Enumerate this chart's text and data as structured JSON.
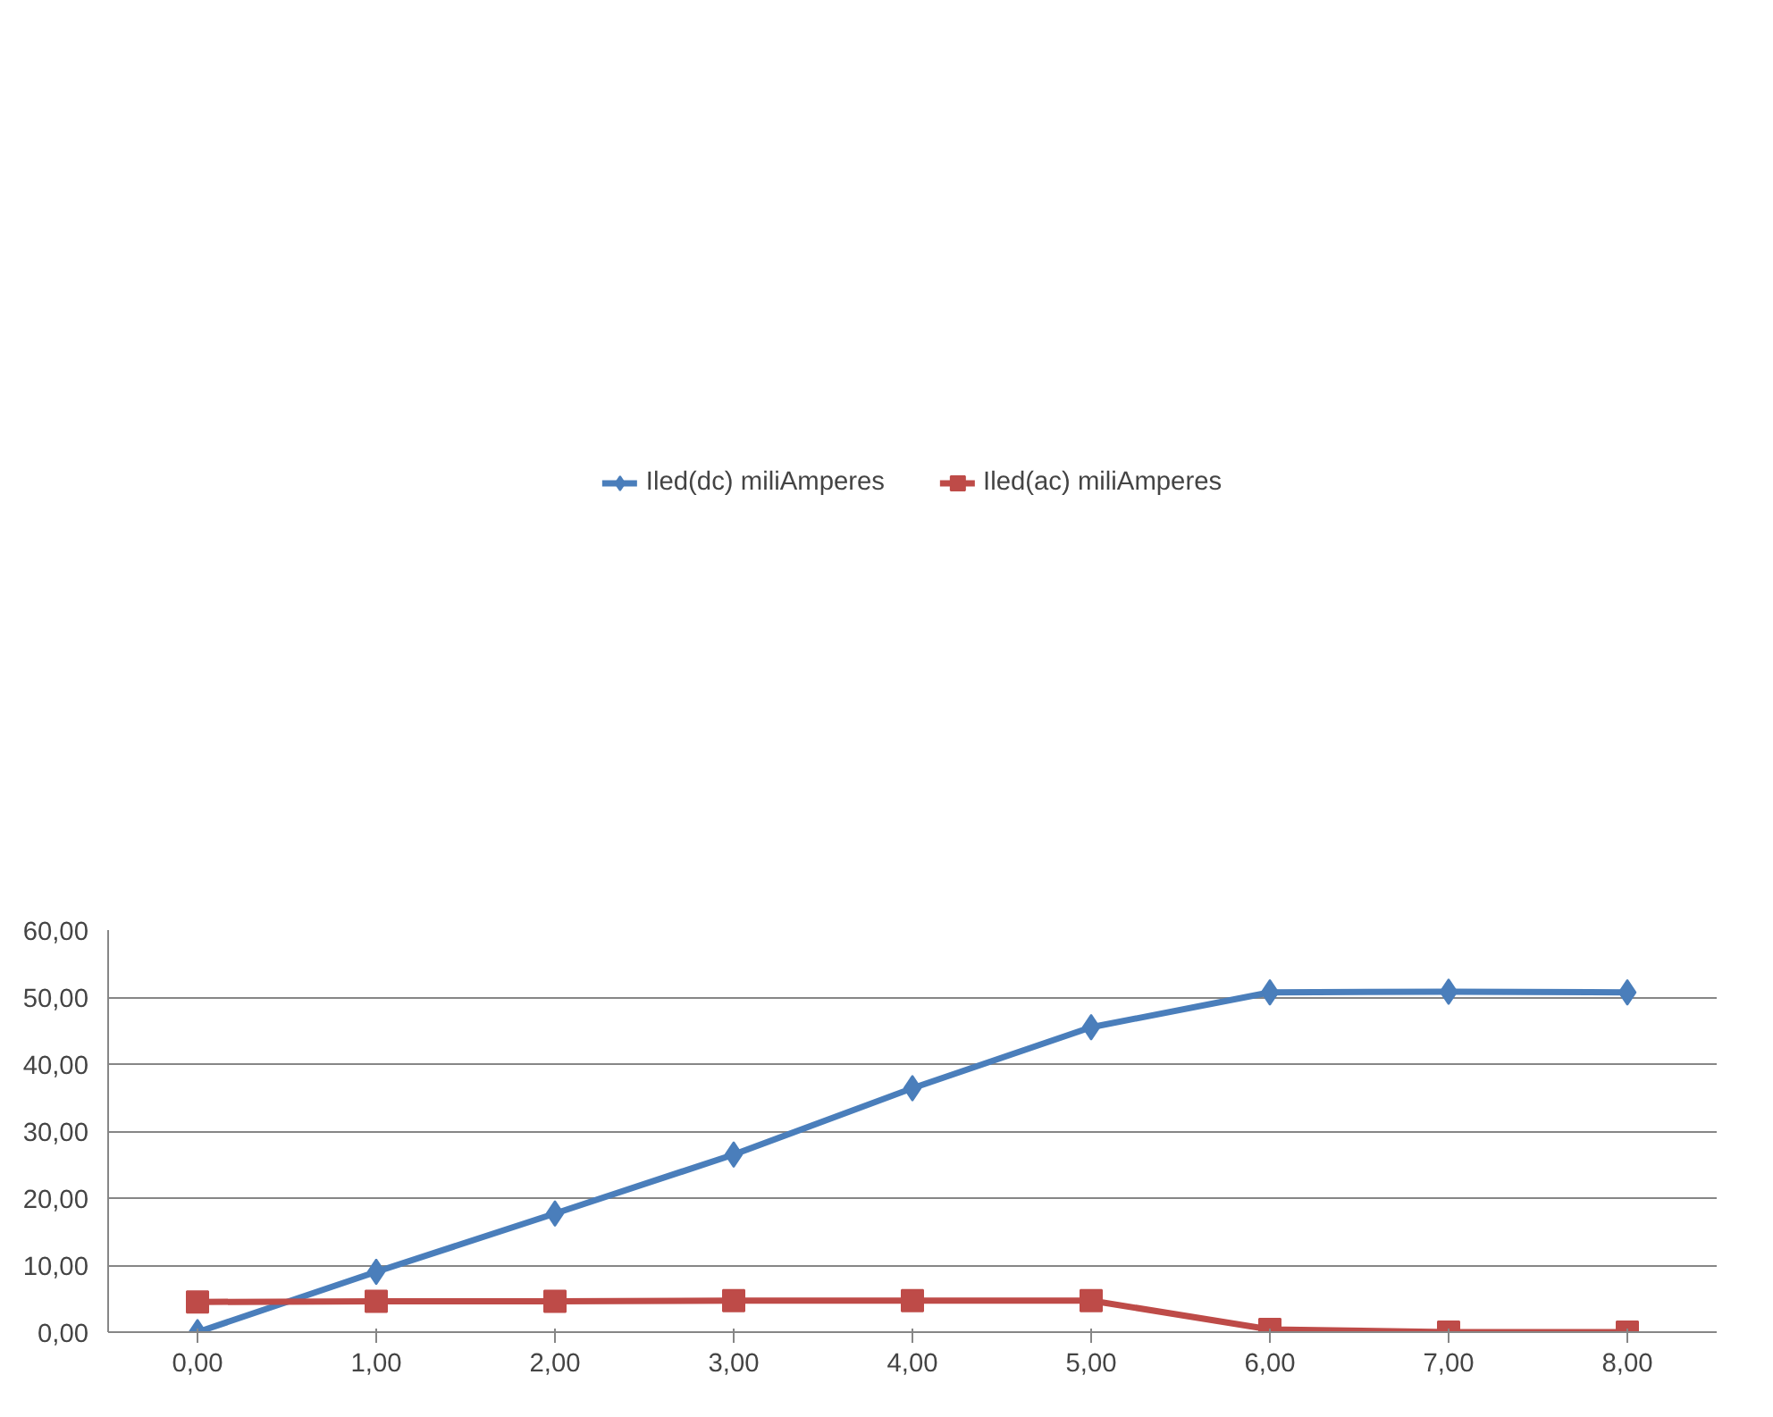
{
  "chart_data": {
    "type": "line",
    "categories": [
      "0,00",
      "1,00",
      "2,00",
      "3,00",
      "4,00",
      "5,00",
      "6,00",
      "7,00",
      "8,00"
    ],
    "series": [
      {
        "name": "Iled(dc) miliAmperes",
        "color": "#4a7ebb",
        "marker": "diamond",
        "values": [
          0,
          9.0,
          17.7,
          26.5,
          36.4,
          45.5,
          50.7,
          50.8,
          50.7
        ]
      },
      {
        "name": "Iled(ac) miliAmperes",
        "color": "#be4b48",
        "marker": "square",
        "values": [
          4.5,
          4.6,
          4.6,
          4.7,
          4.7,
          4.7,
          0.4,
          0,
          0
        ]
      }
    ],
    "ylim": [
      0,
      60
    ],
    "yticks": [
      {
        "value": 0,
        "label": "0,00"
      },
      {
        "value": 10,
        "label": "10,00"
      },
      {
        "value": 20,
        "label": "20,00"
      },
      {
        "value": 30,
        "label": "30,00"
      },
      {
        "value": 40,
        "label": "40,00"
      },
      {
        "value": 50,
        "label": "50,00"
      },
      {
        "value": 60,
        "label": "60,00"
      }
    ],
    "grid": "y",
    "legend": "top",
    "line_style": "solid"
  }
}
